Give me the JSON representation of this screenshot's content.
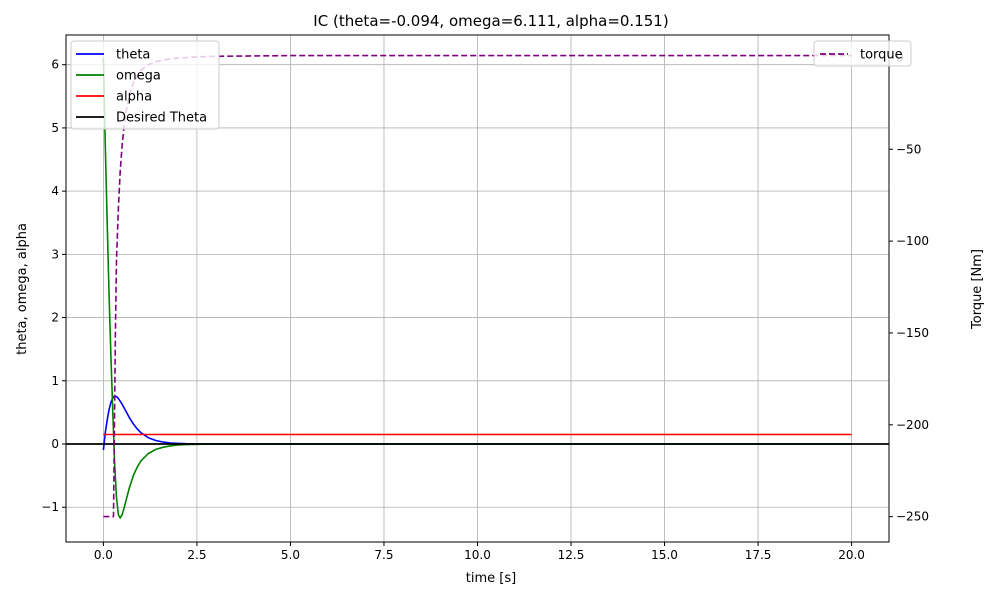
{
  "chart_data": {
    "type": "line",
    "title": "IC (theta=-0.094, omega=6.111, alpha=0.151)",
    "xlabel": "time [s]",
    "ylabel_left": "theta, omega, alpha",
    "ylabel_right": "Torque [Nm]",
    "xlim": [
      -1.0,
      21.0
    ],
    "ylim_left": [
      -1.55,
      6.47
    ],
    "ylim_right": [
      -263.8,
      12.2
    ],
    "xticks": [
      0.0,
      2.5,
      5.0,
      7.5,
      10.0,
      12.5,
      15.0,
      17.5,
      20.0
    ],
    "xtick_labels": [
      "0.0",
      "2.5",
      "5.0",
      "7.5",
      "10.0",
      "12.5",
      "15.0",
      "17.5",
      "20.0"
    ],
    "yticks_left": [
      -1,
      0,
      1,
      2,
      3,
      4,
      5,
      6
    ],
    "ytick_labels_left": [
      "−1",
      "0",
      "1",
      "2",
      "3",
      "4",
      "5",
      "6"
    ],
    "yticks_right": [
      0,
      -50,
      -100,
      -150,
      -200,
      -250
    ],
    "ytick_labels_right": [
      "0",
      "−50",
      "−100",
      "−150",
      "−200",
      "−250"
    ],
    "grid": true,
    "legend_left_position": "top-left",
    "legend_right_position": "top-right",
    "series": [
      {
        "name": "theta",
        "axis": "left",
        "color": "#0000ff",
        "style": "solid",
        "x": [
          0,
          0.05,
          0.1,
          0.15,
          0.2,
          0.25,
          0.3,
          0.35,
          0.4,
          0.5,
          0.6,
          0.7,
          0.8,
          0.9,
          1.0,
          1.2,
          1.4,
          1.6,
          1.8,
          2.0,
          2.2,
          2.5,
          3.0,
          5.0,
          10.0,
          15.0,
          20.0
        ],
        "y": [
          -0.094,
          0.18,
          0.38,
          0.54,
          0.66,
          0.73,
          0.76,
          0.75,
          0.72,
          0.63,
          0.52,
          0.41,
          0.32,
          0.24,
          0.18,
          0.1,
          0.055,
          0.03,
          0.016,
          0.009,
          0.005,
          0.002,
          0.0,
          0.0,
          0.0,
          0.0,
          0.0
        ]
      },
      {
        "name": "omega",
        "axis": "left",
        "color": "#008000",
        "style": "solid",
        "x": [
          0,
          0.05,
          0.1,
          0.15,
          0.2,
          0.25,
          0.3,
          0.35,
          0.4,
          0.45,
          0.5,
          0.55,
          0.6,
          0.7,
          0.8,
          0.9,
          1.0,
          1.2,
          1.4,
          1.6,
          1.8,
          2.0,
          2.2,
          2.5,
          3.0,
          5.0,
          10.0,
          15.0,
          20.0
        ],
        "y": [
          6.111,
          4.7,
          3.5,
          2.4,
          1.4,
          0.5,
          -0.3,
          -0.85,
          -1.12,
          -1.17,
          -1.12,
          -1.02,
          -0.9,
          -0.68,
          -0.5,
          -0.37,
          -0.27,
          -0.15,
          -0.085,
          -0.05,
          -0.028,
          -0.016,
          -0.009,
          -0.004,
          0.0,
          0.0,
          0.0,
          0.0,
          0.0
        ]
      },
      {
        "name": "alpha",
        "axis": "left",
        "color": "#ff0000",
        "style": "solid",
        "x": [
          0,
          20
        ],
        "y": [
          0.151,
          0.151
        ]
      },
      {
        "name": "Desired Theta",
        "axis": "left",
        "color": "#000000",
        "style": "solid",
        "span": "full",
        "x": [
          -1.0,
          21.0
        ],
        "y": [
          0,
          0
        ]
      },
      {
        "name": "torque",
        "axis": "right",
        "color": "#800080",
        "style": "dashed",
        "x": [
          0,
          0.1,
          0.2,
          0.27,
          0.29,
          0.32,
          0.35,
          0.4,
          0.45,
          0.5,
          0.55,
          0.6,
          0.7,
          0.8,
          0.9,
          1.0,
          1.2,
          1.4,
          1.6,
          1.8,
          2.0,
          2.5,
          3.0,
          5.0,
          10.0,
          15.0,
          20.0
        ],
        "y": [
          -250,
          -250,
          -250,
          -250,
          -210,
          -150,
          -110,
          -82,
          -62,
          -48,
          -38,
          -30,
          -20,
          -14,
          -10,
          -7,
          -4,
          -2.4,
          -1.4,
          -0.8,
          -0.4,
          0.3,
          0.6,
          1.0,
          1.0,
          1.0,
          1.0
        ]
      }
    ]
  }
}
